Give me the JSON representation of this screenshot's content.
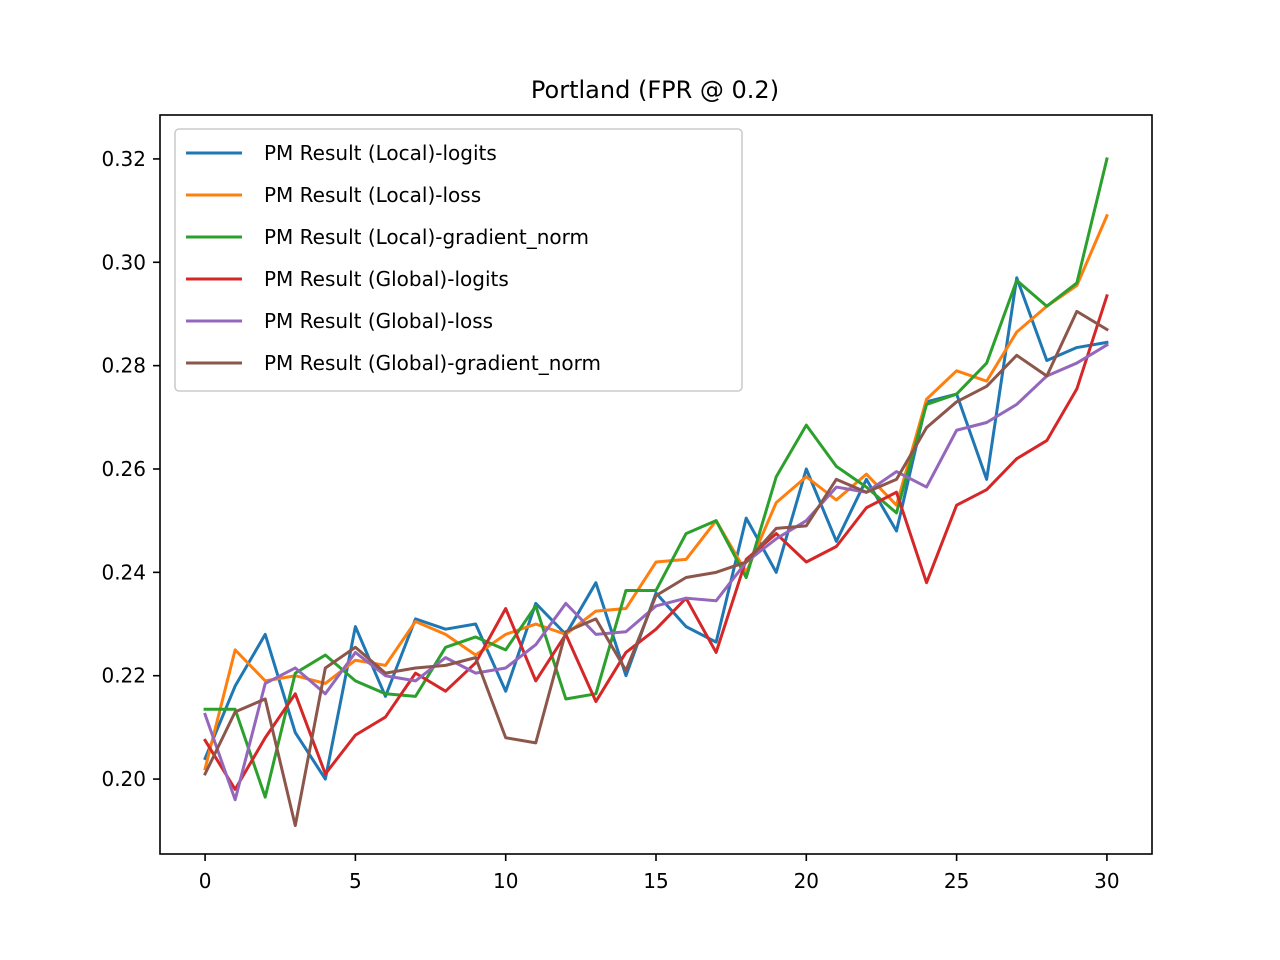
{
  "chart_data": {
    "type": "line",
    "title": "Portland (FPR @ 0.2)",
    "xlabel": "",
    "ylabel": "",
    "xlim": [
      -1.5,
      31.5
    ],
    "ylim": [
      0.1855,
      0.3285
    ],
    "xticks": [
      0,
      5,
      10,
      15,
      20,
      25,
      30
    ],
    "yticks": [
      0.2,
      0.22,
      0.24,
      0.26,
      0.28,
      0.3,
      0.32
    ],
    "ytick_labels": [
      "0.20",
      "0.22",
      "0.24",
      "0.26",
      "0.28",
      "0.30",
      "0.32"
    ],
    "grid": false,
    "legend_position": "top-left",
    "x": [
      0,
      1,
      2,
      3,
      4,
      5,
      6,
      7,
      8,
      9,
      10,
      11,
      12,
      13,
      14,
      15,
      16,
      17,
      18,
      19,
      20,
      21,
      22,
      23,
      24,
      25,
      26,
      27,
      28,
      29,
      30
    ],
    "series": [
      {
        "name": "PM Result (Local)-logits",
        "color": "#1f77b4",
        "values": [
          0.204,
          0.218,
          0.228,
          0.209,
          0.2,
          0.2295,
          0.216,
          0.231,
          0.229,
          0.23,
          0.217,
          0.234,
          0.228,
          0.238,
          0.22,
          0.236,
          0.2295,
          0.2265,
          0.2505,
          0.24,
          0.26,
          0.246,
          0.258,
          0.248,
          0.273,
          0.2745,
          0.258,
          0.297,
          0.281,
          0.2835,
          0.2845
        ]
      },
      {
        "name": "PM Result (Local)-loss",
        "color": "#ff7f0e",
        "values": [
          0.202,
          0.225,
          0.219,
          0.22,
          0.2185,
          0.223,
          0.222,
          0.2305,
          0.228,
          0.224,
          0.228,
          0.23,
          0.228,
          0.2325,
          0.233,
          0.242,
          0.2425,
          0.25,
          0.24,
          0.2535,
          0.2585,
          0.254,
          0.259,
          0.253,
          0.2735,
          0.279,
          0.277,
          0.2865,
          0.2915,
          0.2955,
          0.309
        ]
      },
      {
        "name": "PM Result (Local)-gradient_norm",
        "color": "#2ca02c",
        "values": [
          0.2135,
          0.2135,
          0.1965,
          0.2205,
          0.224,
          0.219,
          0.2165,
          0.216,
          0.2255,
          0.2275,
          0.225,
          0.2335,
          0.2155,
          0.2165,
          0.2365,
          0.2365,
          0.2475,
          0.25,
          0.239,
          0.2585,
          0.2685,
          0.2605,
          0.2565,
          0.2515,
          0.2725,
          0.2745,
          0.2805,
          0.2965,
          0.2915,
          0.296,
          0.32
        ]
      },
      {
        "name": "PM Result (Global)-logits",
        "color": "#d62728",
        "values": [
          0.2075,
          0.198,
          0.208,
          0.2165,
          0.201,
          0.2085,
          0.212,
          0.2205,
          0.217,
          0.2225,
          0.233,
          0.219,
          0.228,
          0.215,
          0.2245,
          0.229,
          0.235,
          0.2245,
          0.2425,
          0.2475,
          0.242,
          0.245,
          0.2525,
          0.2555,
          0.238,
          0.253,
          0.256,
          0.262,
          0.2655,
          0.2755,
          0.2935
        ]
      },
      {
        "name": "PM Result (Global)-loss",
        "color": "#9467bd",
        "values": [
          0.2125,
          0.196,
          0.2185,
          0.2215,
          0.2165,
          0.2245,
          0.22,
          0.219,
          0.2235,
          0.2205,
          0.2215,
          0.226,
          0.234,
          0.228,
          0.2285,
          0.2335,
          0.235,
          0.2345,
          0.242,
          0.2465,
          0.25,
          0.2565,
          0.2555,
          0.2595,
          0.2565,
          0.2675,
          0.269,
          0.2725,
          0.278,
          0.2805,
          0.284
        ]
      },
      {
        "name": "PM Result (Global)-gradient_norm",
        "color": "#8c564b",
        "values": [
          0.201,
          0.213,
          0.2155,
          0.191,
          0.2215,
          0.2255,
          0.2205,
          0.2215,
          0.222,
          0.2235,
          0.208,
          0.207,
          0.2285,
          0.231,
          0.221,
          0.2355,
          0.239,
          0.24,
          0.242,
          0.2485,
          0.249,
          0.258,
          0.2555,
          0.258,
          0.268,
          0.273,
          0.276,
          0.282,
          0.278,
          0.2905,
          0.287
        ]
      }
    ]
  }
}
